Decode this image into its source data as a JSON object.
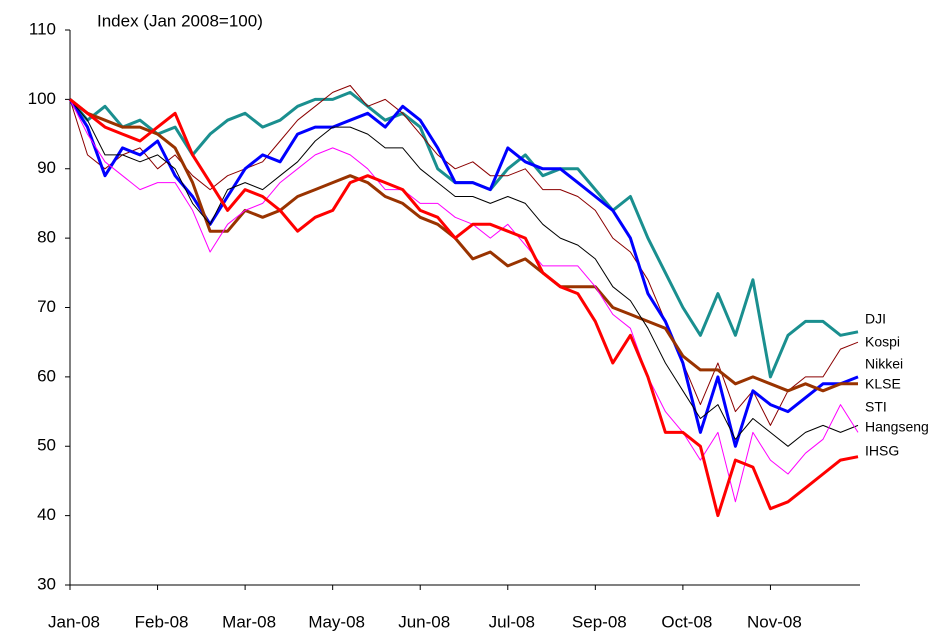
{
  "chart_data": {
    "type": "line",
    "y_label": "Index (Jan 2008=100)",
    "x": [
      0,
      1,
      2,
      3,
      4,
      5,
      6,
      7,
      8,
      9,
      10,
      11,
      12,
      13,
      14,
      15,
      16,
      17,
      18,
      19,
      20,
      21,
      22,
      23,
      24,
      25,
      26,
      27,
      28,
      29,
      30,
      31,
      32,
      33,
      34,
      35,
      36,
      37,
      38,
      39,
      40,
      41,
      42,
      43,
      44,
      45
    ],
    "xlim": [
      0,
      45
    ],
    "xticks": [
      {
        "value": 0,
        "label": "Jan-08"
      },
      {
        "value": 5,
        "label": "Feb-08"
      },
      {
        "value": 10,
        "label": "Mar-08"
      },
      {
        "value": 15,
        "label": "May-08"
      },
      {
        "value": 20,
        "label": "Jun-08"
      },
      {
        "value": 25,
        "label": "Jul-08"
      },
      {
        "value": 30,
        "label": "Sep-08"
      },
      {
        "value": 35,
        "label": "Oct-08"
      },
      {
        "value": 40,
        "label": "Nov-08"
      }
    ],
    "ylim": [
      30,
      110
    ],
    "yticks": [
      30,
      40,
      50,
      60,
      70,
      80,
      90,
      100,
      110
    ],
    "grid": false,
    "series": [
      {
        "name": "DJI",
        "color": "#1a8f8f",
        "width": 3,
        "values": [
          100,
          97,
          99,
          96,
          97,
          95,
          96,
          92,
          95,
          97,
          98,
          96,
          97,
          99,
          100,
          100,
          101,
          99,
          97,
          98,
          96,
          90,
          88,
          88,
          87,
          90,
          92,
          89,
          90,
          90,
          87,
          84,
          86,
          80,
          75,
          70,
          66,
          72,
          66,
          74,
          60,
          66,
          68,
          68,
          66,
          66.5
        ]
      },
      {
        "name": "Kospi",
        "color": "#8b0000",
        "width": 1,
        "values": [
          100,
          92,
          90,
          92,
          93,
          90,
          92,
          89,
          87,
          89,
          90,
          91,
          94,
          97,
          99,
          101,
          102,
          99,
          100,
          98,
          95,
          92,
          90,
          91,
          89,
          89,
          90,
          87,
          87,
          86,
          84,
          80,
          78,
          74,
          68,
          62,
          56,
          62,
          55,
          58,
          53,
          58,
          60,
          60,
          64,
          65
        ]
      },
      {
        "name": "Nikkei",
        "color": "#0000ff",
        "width": 3,
        "values": [
          100,
          96,
          89,
          93,
          92,
          94,
          89,
          86,
          82,
          86,
          90,
          92,
          91,
          95,
          96,
          96,
          97,
          98,
          96,
          99,
          97,
          93,
          88,
          88,
          87,
          93,
          91,
          90,
          90,
          88,
          86,
          84,
          80,
          72,
          68,
          62,
          52,
          60,
          50,
          58,
          56,
          55,
          57,
          59,
          59,
          60
        ]
      },
      {
        "name": "KLSE",
        "color": "#993300",
        "width": 3,
        "values": [
          100,
          98,
          97,
          96,
          96,
          95,
          93,
          88,
          81,
          81,
          84,
          83,
          84,
          86,
          87,
          88,
          89,
          88,
          86,
          85,
          83,
          82,
          80,
          77,
          78,
          76,
          77,
          75,
          73,
          73,
          73,
          70,
          69,
          68,
          67,
          63,
          61,
          61,
          59,
          60,
          59,
          58,
          59,
          58,
          59,
          59
        ]
      },
      {
        "name": "STI",
        "color": "#000000",
        "width": 1,
        "values": [
          100,
          97,
          92,
          92,
          91,
          92,
          90,
          85,
          82,
          87,
          88,
          87,
          89,
          91,
          94,
          96,
          96,
          95,
          93,
          93,
          90,
          88,
          86,
          86,
          85,
          86,
          85,
          82,
          80,
          79,
          77,
          73,
          71,
          67,
          62,
          58,
          54,
          56,
          51,
          54,
          52,
          50,
          52,
          53,
          52,
          53
        ]
      },
      {
        "name": "Hangseng",
        "color": "#ff00ff",
        "width": 1,
        "values": [
          100,
          95,
          91,
          89,
          87,
          88,
          88,
          84,
          78,
          82,
          84,
          85,
          88,
          90,
          92,
          93,
          92,
          90,
          87,
          87,
          85,
          85,
          83,
          82,
          80,
          82,
          79,
          76,
          76,
          76,
          73,
          69,
          67,
          60,
          55,
          52,
          48,
          52,
          42,
          52,
          48,
          46,
          49,
          51,
          56,
          52
        ]
      },
      {
        "name": "IHSG",
        "color": "#ff0000",
        "width": 3,
        "values": [
          100,
          98,
          96,
          95,
          94,
          96,
          98,
          92,
          88,
          84,
          87,
          86,
          84,
          81,
          83,
          84,
          88,
          89,
          88,
          87,
          84,
          83,
          80,
          82,
          82,
          81,
          80,
          75,
          73,
          72,
          68,
          62,
          66,
          60,
          52,
          52,
          50,
          40,
          48,
          47,
          41,
          42,
          44,
          46,
          48,
          48.5
        ]
      }
    ]
  }
}
